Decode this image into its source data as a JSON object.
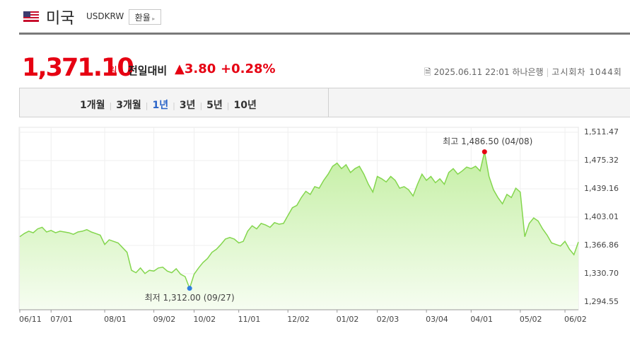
{
  "header": {
    "title": "미국",
    "code": "USDKRW",
    "button": "환율"
  },
  "quote": {
    "price": "1,371.10",
    "unit": "원",
    "change_label": "전일대비",
    "change": "3.80",
    "change_rate": "+0.28%",
    "datetime": "2025.06.11 22:01",
    "bank": "하나은행",
    "round": "고시회차 1044회"
  },
  "tabs": [
    "1개월",
    "3개월",
    "1년",
    "3년",
    "5년",
    "10년"
  ],
  "chart_data": {
    "type": "area",
    "categories": [
      "06/11",
      null,
      null,
      null,
      null,
      null,
      null,
      "07/01",
      null,
      null,
      null,
      null,
      null,
      null,
      null,
      null,
      null,
      null,
      null,
      "08/01",
      null,
      null,
      null,
      null,
      null,
      null,
      null,
      null,
      null,
      null,
      "09/02",
      null,
      null,
      null,
      null,
      null,
      null,
      null,
      null,
      "10/02",
      null,
      null,
      null,
      null,
      null,
      null,
      null,
      null,
      null,
      "11/01",
      null,
      null,
      null,
      null,
      null,
      null,
      null,
      null,
      null,
      null,
      "12/02",
      null,
      null,
      null,
      null,
      null,
      null,
      null,
      null,
      null,
      null,
      "01/02",
      null,
      null,
      null,
      null,
      null,
      null,
      null,
      null,
      "02/03",
      null,
      null,
      null,
      null,
      null,
      null,
      null,
      null,
      null,
      null,
      "03/04",
      null,
      null,
      null,
      null,
      null,
      null,
      null,
      null,
      null,
      "04/01",
      null,
      null,
      null,
      null,
      null,
      null,
      null,
      null,
      null,
      null,
      "05/02",
      null,
      null,
      null,
      null,
      null,
      null,
      null,
      null,
      null,
      "06/02",
      null,
      null,
      null
    ],
    "series": [
      {
        "name": "USDKRW",
        "color": "#84d64e",
        "values": [
          1378,
          1382,
          1385,
          1383,
          1388,
          1390,
          1384,
          1386,
          1383,
          1385,
          1384,
          1383,
          1381,
          1384,
          1385,
          1387,
          1384,
          1382,
          1380,
          1368,
          1374,
          1372,
          1370,
          1364,
          1358,
          1335,
          1332,
          1338,
          1331,
          1335,
          1334,
          1338,
          1339,
          1334,
          1332,
          1337,
          1330,
          1327,
          1312,
          1330,
          1338,
          1345,
          1350,
          1358,
          1362,
          1368,
          1375,
          1377,
          1375,
          1370,
          1372,
          1385,
          1392,
          1388,
          1395,
          1393,
          1390,
          1396,
          1394,
          1395,
          1405,
          1415,
          1418,
          1428,
          1436,
          1432,
          1442,
          1440,
          1450,
          1458,
          1468,
          1472,
          1465,
          1470,
          1460,
          1465,
          1468,
          1458,
          1445,
          1435,
          1455,
          1452,
          1448,
          1455,
          1450,
          1440,
          1442,
          1438,
          1430,
          1445,
          1458,
          1450,
          1455,
          1447,
          1452,
          1445,
          1460,
          1465,
          1458,
          1462,
          1467,
          1465,
          1468,
          1462,
          1486.5,
          1455,
          1438,
          1428,
          1420,
          1432,
          1428,
          1440,
          1435,
          1378,
          1395,
          1402,
          1398,
          1388,
          1380,
          1370,
          1368,
          1366,
          1372,
          1362,
          1355,
          1371.1
        ]
      }
    ],
    "high_label": "최고 1,486.50 (04/08)",
    "low_label": "최저 1,312.00 (09/27)",
    "high_color": "#e60012",
    "low_color": "#2f7fe0",
    "ylim": [
      1284.6,
      1517.8
    ],
    "yticks": [
      {
        "value": 1511.47,
        "label": "1,511.47"
      },
      {
        "value": 1475.32,
        "label": "1,475.32"
      },
      {
        "value": 1439.16,
        "label": "1,439.16"
      },
      {
        "value": 1403.01,
        "label": "1,403.01"
      },
      {
        "value": 1366.86,
        "label": "1,366.86"
      },
      {
        "value": 1330.7,
        "label": "1,330.70"
      },
      {
        "value": 1294.55,
        "label": "1,294.55"
      }
    ],
    "grid": true
  }
}
